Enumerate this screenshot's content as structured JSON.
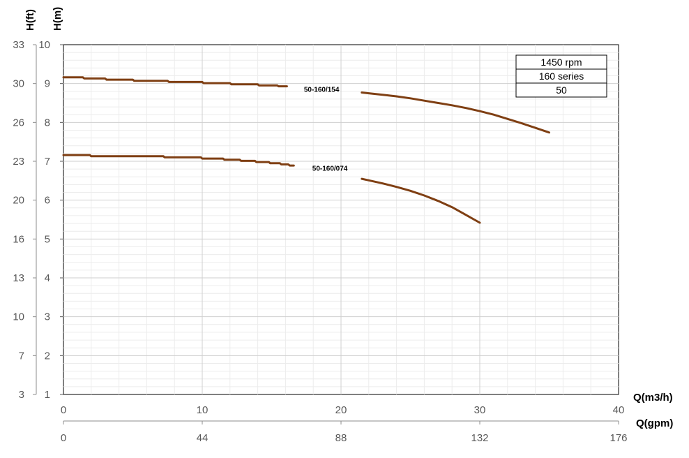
{
  "chart_data": {
    "type": "line",
    "x_axes": [
      {
        "title": "Q(m3/h)",
        "range": [
          0,
          40
        ],
        "ticks": [
          "0",
          "10",
          "20",
          "30",
          "40"
        ]
      },
      {
        "title": "Q(gpm)",
        "range": [
          0,
          176
        ],
        "ticks": [
          "0",
          "44",
          "88",
          "132",
          "176"
        ]
      }
    ],
    "y_axes": [
      {
        "title": "H(m)",
        "range": [
          1,
          10
        ],
        "ticks": [
          "1",
          "2",
          "3",
          "4",
          "5",
          "6",
          "7",
          "8",
          "9",
          "10"
        ]
      },
      {
        "title": "H(ft)",
        "ticks": [
          "3",
          "7",
          "10",
          "13",
          "16",
          "20",
          "23",
          "26",
          "30",
          "33"
        ]
      }
    ],
    "grid": true,
    "legend": {
      "placement": "top-right",
      "rows": [
        "1450 rpm",
        "160 series",
        "50"
      ]
    },
    "series": [
      {
        "name": "50-160/154",
        "color": "#7f3f13",
        "segments": [
          {
            "x": [
              0,
              1.4,
              1.5,
              3,
              3.1,
              5,
              5.1,
              7.5,
              7.6,
              10,
              10.1,
              12,
              12.1,
              14,
              14.1,
              15.4,
              15.5,
              16.1
            ],
            "y": [
              9.16,
              9.16,
              9.13,
              9.13,
              9.1,
              9.1,
              9.07,
              9.07,
              9.04,
              9.04,
              9.01,
              9.01,
              8.98,
              8.98,
              8.95,
              8.95,
              8.93,
              8.93
            ]
          },
          {
            "x": [
              21.5,
              22,
              23,
              24,
              25,
              26,
              27,
              28,
              29,
              30,
              31,
              32,
              33,
              34,
              35,
              35
            ],
            "y": [
              8.77,
              8.75,
              8.71,
              8.67,
              8.62,
              8.56,
              8.5,
              8.44,
              8.37,
              8.29,
              8.2,
              8.09,
              7.98,
              7.86,
              7.74,
              7.74
            ]
          }
        ],
        "label": {
          "text": "50-160/154",
          "x": 18.6,
          "y": 8.86
        }
      },
      {
        "name": "50-160/074",
        "color": "#7f3f13",
        "segments": [
          {
            "x": [
              0,
              1.9,
              2,
              7.2,
              7.3,
              9.9,
              10,
              11.5,
              11.6,
              12.7,
              12.8,
              13.8,
              13.9,
              14.8,
              14.9,
              15.6,
              15.7,
              16.2,
              16.3,
              16.6
            ],
            "y": [
              7.16,
              7.16,
              7.13,
              7.13,
              7.1,
              7.1,
              7.07,
              7.07,
              7.04,
              7.04,
              7.01,
              7.01,
              6.98,
              6.98,
              6.95,
              6.95,
              6.92,
              6.92,
              6.89,
              6.89
            ]
          },
          {
            "x": [
              21.5,
              22,
              23,
              24,
              25,
              26,
              27,
              28,
              29,
              30
            ],
            "y": [
              6.55,
              6.51,
              6.43,
              6.34,
              6.24,
              6.12,
              5.98,
              5.82,
              5.62,
              5.42
            ]
          }
        ],
        "label": {
          "text": "50-160/074",
          "x": 19.2,
          "y": 6.83
        }
      }
    ]
  }
}
